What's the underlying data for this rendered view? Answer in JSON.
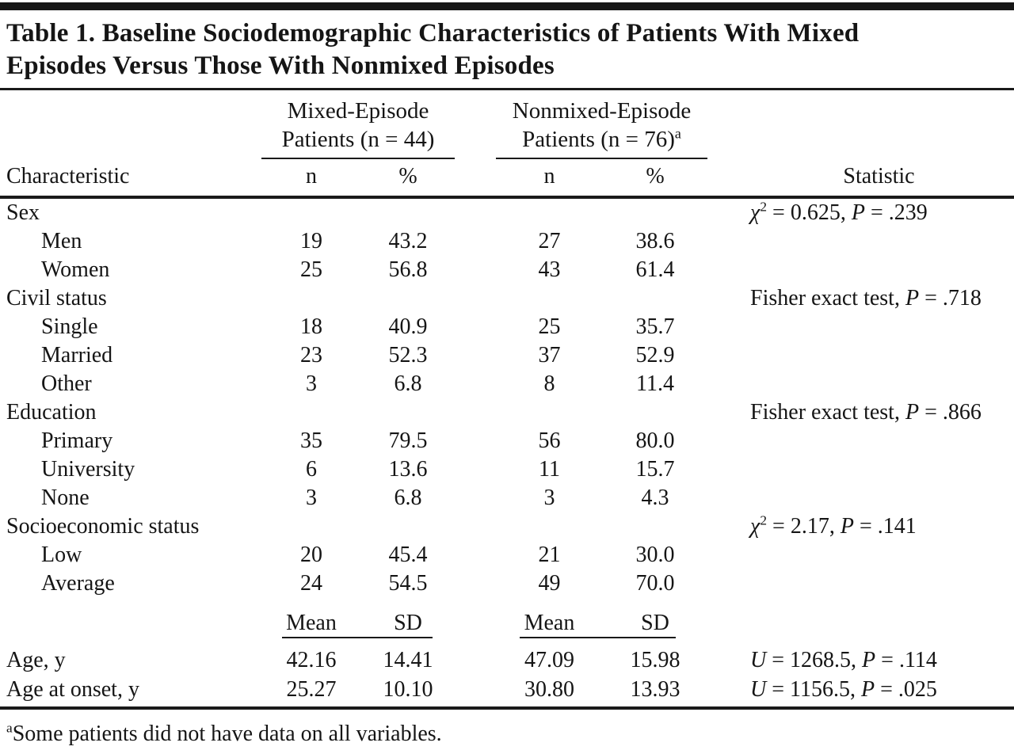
{
  "table": {
    "title_line1": "Table 1. Baseline Sociodemographic Characteristics of Patients With Mixed",
    "title_line2": "Episodes Versus Those With Nonmixed Episodes",
    "header": {
      "characteristic": "Characteristic",
      "statistic": "Statistic",
      "group1": {
        "line1": "Mixed-Episode",
        "line2": "Patients (n = 44)",
        "n": "n",
        "pct": "%"
      },
      "group2": {
        "line1": "Nonmixed-Episode",
        "line2": "Patients (n = 76)",
        "sup": "a",
        "n": "n",
        "pct": "%"
      }
    },
    "rows": [
      {
        "label": "Sex",
        "stat": {
          "sym": "χ",
          "sup": "2",
          "mid": " = 0.625, ",
          "p": "P",
          "post": " = .239"
        }
      },
      {
        "label": "Men",
        "n1": "19",
        "p1": "43.2",
        "n2": "27",
        "p2": "38.6"
      },
      {
        "label": "Women",
        "n1": "25",
        "p1": "56.8",
        "n2": "43",
        "p2": "61.4"
      },
      {
        "label": "Civil status",
        "stat": {
          "pre": "Fisher exact test, ",
          "p": "P",
          "post": " = .718"
        }
      },
      {
        "label": "Single",
        "n1": "18",
        "p1": "40.9",
        "n2": "25",
        "p2": "35.7"
      },
      {
        "label": "Married",
        "n1": "23",
        "p1": "52.3",
        "n2": "37",
        "p2": "52.9"
      },
      {
        "label": "Other",
        "n1": "3",
        "p1": "6.8",
        "n2": "8",
        "p2": "11.4"
      },
      {
        "label": "Education",
        "stat": {
          "pre": "Fisher exact test, ",
          "p": "P",
          "post": " = .866"
        }
      },
      {
        "label": "Primary",
        "n1": "35",
        "p1": "79.5",
        "n2": "56",
        "p2": "80.0"
      },
      {
        "label": "University",
        "n1": "6",
        "p1": "13.6",
        "n2": "11",
        "p2": "15.7"
      },
      {
        "label": "None",
        "n1": "3",
        "p1": "6.8",
        "n2": "3",
        "p2": "4.3"
      },
      {
        "label": "Socioeconomic status",
        "stat": {
          "sym": "χ",
          "sup": "2",
          "mid": " = 2.17, ",
          "p": "P",
          "post": " = .141"
        }
      },
      {
        "label": "Low",
        "n1": "20",
        "p1": "45.4",
        "n2": "21",
        "p2": "30.0"
      },
      {
        "label": "Average",
        "n1": "24",
        "p1": "54.5",
        "n2": "49",
        "p2": "70.0"
      }
    ],
    "meansd": {
      "mean1": "Mean",
      "sd1": "SD",
      "mean2": "Mean",
      "sd2": "SD"
    },
    "cont_rows": [
      {
        "label": "Age, y",
        "m1": "42.16",
        "s1": "14.41",
        "m2": "47.09",
        "s2": "15.98",
        "stat": {
          "sym": "U",
          "mid": " = 1268.5, ",
          "p": "P",
          "post": " = .114"
        }
      },
      {
        "label": "Age at onset, y",
        "m1": "25.27",
        "s1": "10.10",
        "m2": "30.80",
        "s2": "13.93",
        "stat": {
          "sym": "U",
          "mid": " = 1156.5, ",
          "p": "P",
          "post": " = .025"
        }
      }
    ],
    "footnote": {
      "sup": "a",
      "text": "Some patients did not have data on all variables."
    }
  }
}
